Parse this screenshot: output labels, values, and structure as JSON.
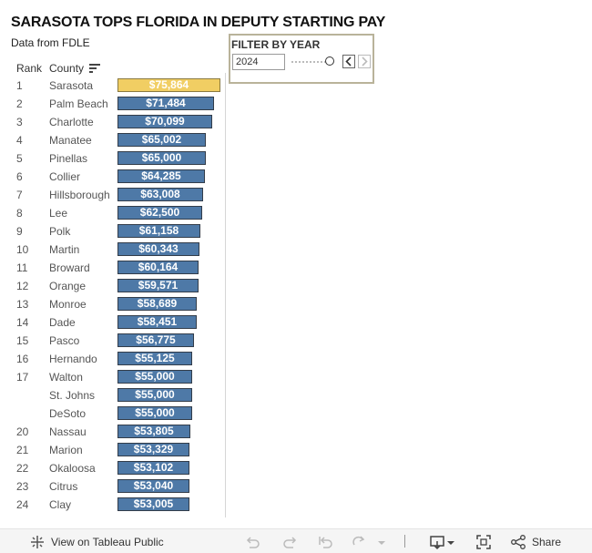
{
  "header": {
    "title": "SARASOTA TOPS FLORIDA IN DEPUTY STARTING PAY",
    "subtitle": "Data from FDLE"
  },
  "columns": {
    "rank": "Rank",
    "county": "County"
  },
  "filter": {
    "title": "FILTER BY YEAR",
    "value": "2024"
  },
  "colors": {
    "bar": "#4e79a7",
    "highlight": "#f1ce63",
    "bar_border": "#333d4a"
  },
  "chart_data": {
    "type": "bar",
    "orientation": "horizontal",
    "title": "SARASOTA TOPS FLORIDA IN DEPUTY STARTING PAY",
    "subtitle": "Data from FDLE",
    "year": "2024",
    "highlight": "Sarasota",
    "xlim": [
      0,
      76000
    ],
    "rows": [
      {
        "rank": "1",
        "county": "Sarasota",
        "value": 75864,
        "label": "$75,864"
      },
      {
        "rank": "2",
        "county": "Palm Beach",
        "value": 71484,
        "label": "$71,484"
      },
      {
        "rank": "3",
        "county": "Charlotte",
        "value": 70099,
        "label": "$70,099"
      },
      {
        "rank": "4",
        "county": "Manatee",
        "value": 65002,
        "label": "$65,002"
      },
      {
        "rank": "5",
        "county": "Pinellas",
        "value": 65000,
        "label": "$65,000"
      },
      {
        "rank": "6",
        "county": "Collier",
        "value": 64285,
        "label": "$64,285"
      },
      {
        "rank": "7",
        "county": "Hillsborough",
        "value": 63008,
        "label": "$63,008"
      },
      {
        "rank": "8",
        "county": "Lee",
        "value": 62500,
        "label": "$62,500"
      },
      {
        "rank": "9",
        "county": "Polk",
        "value": 61158,
        "label": "$61,158"
      },
      {
        "rank": "10",
        "county": "Martin",
        "value": 60343,
        "label": "$60,343"
      },
      {
        "rank": "11",
        "county": "Broward",
        "value": 60164,
        "label": "$60,164"
      },
      {
        "rank": "12",
        "county": "Orange",
        "value": 59571,
        "label": "$59,571"
      },
      {
        "rank": "13",
        "county": "Monroe",
        "value": 58689,
        "label": "$58,689"
      },
      {
        "rank": "14",
        "county": "Dade",
        "value": 58451,
        "label": "$58,451"
      },
      {
        "rank": "15",
        "county": "Pasco",
        "value": 56775,
        "label": "$56,775"
      },
      {
        "rank": "16",
        "county": "Hernando",
        "value": 55125,
        "label": "$55,125"
      },
      {
        "rank": "17",
        "county": "Walton",
        "value": 55000,
        "label": "$55,000"
      },
      {
        "rank": "",
        "county": "St. Johns",
        "value": 55000,
        "label": "$55,000"
      },
      {
        "rank": "",
        "county": "DeSoto",
        "value": 55000,
        "label": "$55,000"
      },
      {
        "rank": "20",
        "county": "Nassau",
        "value": 53805,
        "label": "$53,805"
      },
      {
        "rank": "21",
        "county": "Marion",
        "value": 53329,
        "label": "$53,329"
      },
      {
        "rank": "22",
        "county": "Okaloosa",
        "value": 53102,
        "label": "$53,102"
      },
      {
        "rank": "23",
        "county": "Citrus",
        "value": 53040,
        "label": "$53,040"
      },
      {
        "rank": "24",
        "county": "Clay",
        "value": 53005,
        "label": "$53,005"
      }
    ]
  },
  "toolbar": {
    "view_label": "View on Tableau Public",
    "share_label": "Share"
  }
}
